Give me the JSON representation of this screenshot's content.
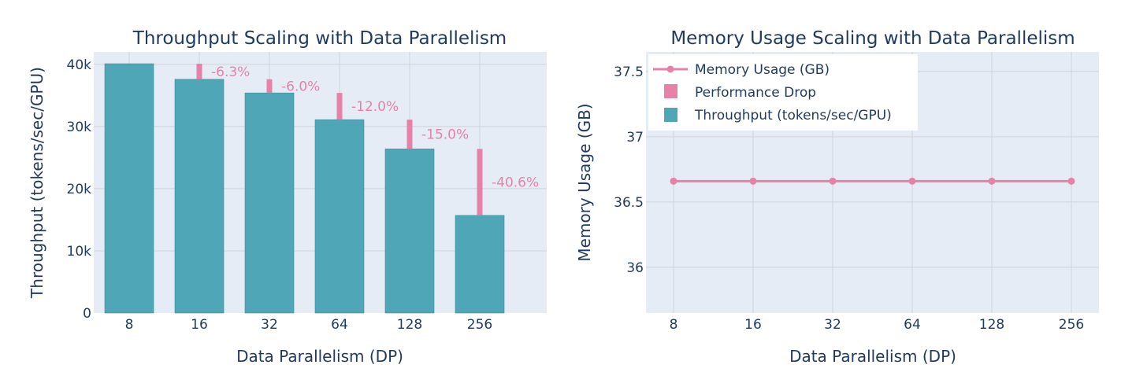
{
  "colors": {
    "plot_bg": "#e5ecf6",
    "grid": "#cfd3d8",
    "throughput": "#4ea6b6",
    "drop": "#e682a8",
    "memory": "#e682a8",
    "text": "#1f3a5f"
  },
  "chart_data": [
    {
      "type": "bar",
      "title": "Throughput Scaling with Data Parallelism",
      "xlabel": "Data Parallelism (DP)",
      "ylabel": "Throughput (tokens/sec/GPU)",
      "categories": [
        "8",
        "16",
        "32",
        "64",
        "128",
        "256"
      ],
      "ylim": [
        0,
        42000
      ],
      "yticks": [
        {
          "value": 0,
          "label": "0"
        },
        {
          "value": 10000,
          "label": "10k"
        },
        {
          "value": 20000,
          "label": "20k"
        },
        {
          "value": 30000,
          "label": "30k"
        },
        {
          "value": 40000,
          "label": "40k"
        }
      ],
      "grid": true,
      "series": [
        {
          "name": "Throughput (tokens/sec/GPU)",
          "values": [
            40100,
            37600,
            35400,
            31100,
            26400,
            15700
          ]
        }
      ],
      "drops": [
        {
          "category": "16",
          "from": 40100,
          "to": 37600,
          "label": "-6.3%"
        },
        {
          "category": "32",
          "from": 37600,
          "to": 35400,
          "label": "-6.0%"
        },
        {
          "category": "64",
          "from": 35400,
          "to": 31100,
          "label": "-12.0%"
        },
        {
          "category": "128",
          "from": 31100,
          "to": 26400,
          "label": "-15.0%"
        },
        {
          "category": "256",
          "from": 26400,
          "to": 15700,
          "label": "-40.6%"
        }
      ]
    },
    {
      "type": "line",
      "title": "Memory Usage Scaling with Data Parallelism",
      "xlabel": "Data Parallelism (DP)",
      "ylabel": "Memory Usage (GB)",
      "categories": [
        "8",
        "16",
        "32",
        "64",
        "128",
        "256"
      ],
      "ylim": [
        35.65,
        37.65
      ],
      "yticks": [
        {
          "value": 36,
          "label": "36"
        },
        {
          "value": 36.5,
          "label": "36.5"
        },
        {
          "value": 37,
          "label": "37"
        },
        {
          "value": 37.5,
          "label": "37.5"
        }
      ],
      "grid": true,
      "series": [
        {
          "name": "Memory Usage (GB)",
          "values": [
            36.66,
            36.66,
            36.66,
            36.66,
            36.66,
            36.66
          ]
        }
      ],
      "legend": {
        "placement": "top-left",
        "entries": [
          "Memory Usage (GB)",
          "Performance Drop",
          "Throughput (tokens/sec/GPU)"
        ]
      }
    }
  ]
}
